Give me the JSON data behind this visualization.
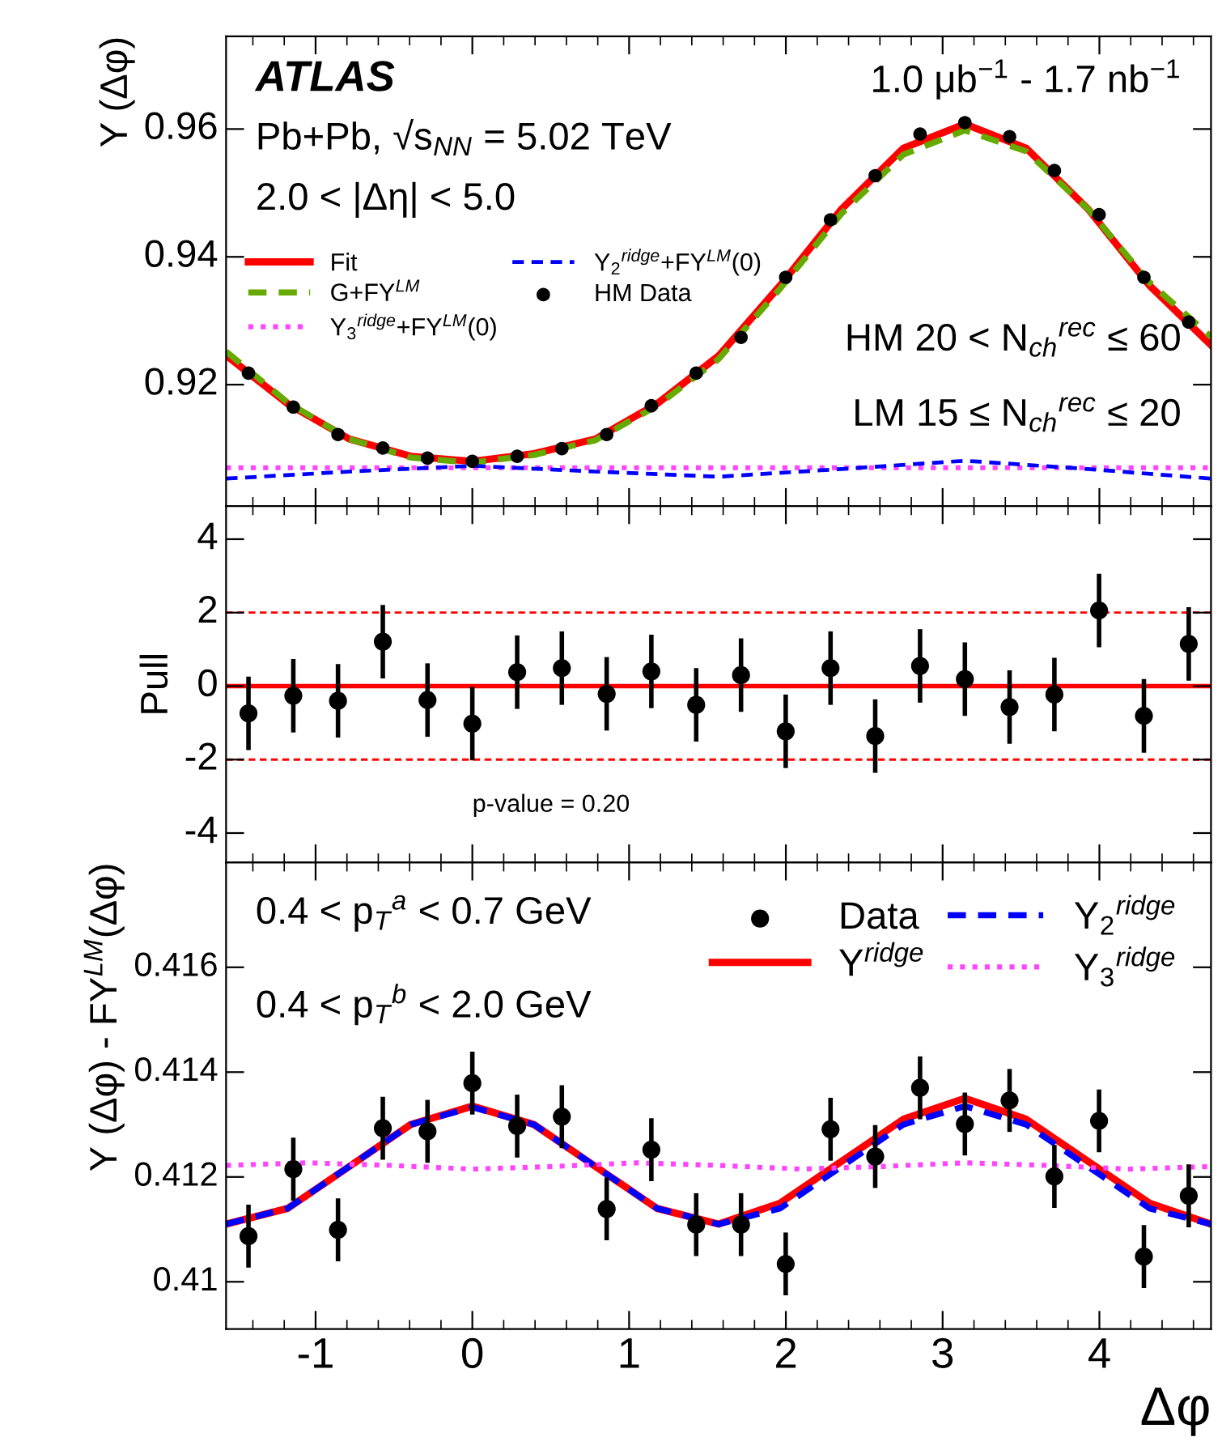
{
  "chart_data": [
    {
      "type": "line",
      "ylabel": "Y (Δφ)",
      "xlim": [
        -1.571,
        4.712
      ],
      "xticks": [
        -1,
        0,
        1,
        2,
        3,
        4
      ],
      "ylim": [
        0.901,
        0.9745
      ],
      "yticks": [
        0.92,
        0.94,
        0.96
      ],
      "tick_labels": "y",
      "legend": "left",
      "annotations": [
        "ATLAS",
        "1.0 μb$^{−1}$ - 1.7 nb$^{−1}$",
        "Pb+Pb, √s$_{NN}$ = 5.02 TeV",
        "2.0 < |Δη| < 5.0",
        "HM 20 < N$_{ch}$$^{rec}$ ≤ 60",
        "LM 15 ≤ N$_{ch}$$^{rec}$ ≤ 20"
      ],
      "series": [
        {
          "name": "Fit",
          "color": "#ff0000",
          "line_style": "solid",
          "x": [
            -1.571,
            -1.178,
            -0.785,
            -0.393,
            0,
            0.393,
            0.785,
            1.178,
            1.571,
            1.963,
            2.356,
            2.749,
            3.142,
            3.534,
            3.927,
            4.32,
            4.712
          ],
          "values": [
            0.9246,
            0.917,
            0.9115,
            0.9088,
            0.908,
            0.9092,
            0.9115,
            0.917,
            0.9245,
            0.9355,
            0.9475,
            0.957,
            0.9608,
            0.957,
            0.9475,
            0.9355,
            0.9262
          ]
        },
        {
          "name": "G+FY$^{LM}$",
          "color": "#66aa00",
          "line_style": "dashed",
          "x": [
            -1.571,
            -1.178,
            -0.785,
            -0.393,
            0,
            0.393,
            0.785,
            1.178,
            1.571,
            1.963,
            2.356,
            2.749,
            3.142,
            3.534,
            3.927,
            4.32,
            4.712
          ],
          "values": [
            0.9252,
            0.9172,
            0.9115,
            0.9086,
            0.9078,
            0.909,
            0.9113,
            0.9167,
            0.924,
            0.935,
            0.9468,
            0.956,
            0.9598,
            0.9565,
            0.9475,
            0.936,
            0.9275
          ]
        },
        {
          "name": "Y$_{3}$$^{ridge}$+FY$^{LM}$(0)",
          "color": "#ff44ff",
          "line_style": "dotted",
          "x": [
            -1.571,
            0,
            1.571,
            3.142,
            4.712
          ],
          "values": [
            0.907,
            0.907,
            0.907,
            0.907,
            0.907
          ]
        },
        {
          "name": "Y$_{2}$$^{ridge}$+FY$^{LM}$(0)",
          "color": "#0000ff",
          "line_style": "dashed",
          "x": [
            -1.571,
            -0.785,
            0,
            0.785,
            1.571,
            2.356,
            3.142,
            3.927,
            4.712
          ],
          "values": [
            0.9053,
            0.9064,
            0.9073,
            0.9064,
            0.9056,
            0.9068,
            0.9081,
            0.9068,
            0.9053
          ]
        },
        {
          "name": "HM Data",
          "type": "scatter",
          "color": "#000000",
          "marker": "circle",
          "x": [
            -1.428,
            -1.142,
            -0.857,
            -0.571,
            -0.286,
            0,
            0.286,
            0.571,
            0.857,
            1.142,
            1.428,
            1.714,
            1.999,
            2.285,
            2.57,
            2.856,
            3.142,
            3.427,
            3.713,
            3.998,
            4.284,
            4.57
          ],
          "values": [
            0.9218,
            0.9165,
            0.9122,
            0.9101,
            0.9085,
            0.908,
            0.9088,
            0.91,
            0.9122,
            0.9167,
            0.9218,
            0.9274,
            0.9368,
            0.9458,
            0.9527,
            0.9592,
            0.961,
            0.9588,
            0.9535,
            0.9466,
            0.9368,
            0.9298
          ]
        }
      ]
    },
    {
      "type": "scatter",
      "ylabel": "Pull",
      "xlim": [
        -1.571,
        4.712
      ],
      "xticks": [
        -1,
        0,
        1,
        2,
        3,
        4
      ],
      "ylim": [
        -4.8,
        4.9
      ],
      "yticks": [
        -4,
        -2,
        0,
        2,
        4
      ],
      "tick_labels": "y",
      "annotations": [
        "p-value = 0.20"
      ],
      "ref_lines": [
        {
          "axis": "y",
          "value": 0,
          "color": "#ff0000",
          "line_style": "solid"
        },
        {
          "axis": "y",
          "value": 2,
          "color": "#ff0000",
          "line_style": "dashed"
        },
        {
          "axis": "y",
          "value": -2,
          "color": "#ff0000",
          "line_style": "dashed"
        }
      ],
      "series": [
        {
          "color": "#000000",
          "marker": "circle",
          "x": [
            -1.428,
            -1.142,
            -0.857,
            -0.571,
            -0.286,
            0,
            0.286,
            0.571,
            0.857,
            1.142,
            1.428,
            1.714,
            1.999,
            2.285,
            2.57,
            2.856,
            3.142,
            3.427,
            3.713,
            3.998,
            4.284,
            4.57
          ],
          "values": [
            -0.74,
            -0.26,
            -0.4,
            1.21,
            -0.38,
            -1.02,
            0.38,
            0.49,
            -0.21,
            0.4,
            -0.51,
            0.3,
            -1.23,
            0.49,
            -1.36,
            0.55,
            0.19,
            -0.57,
            -0.23,
            2.06,
            -0.81,
            1.15
          ],
          "errors": [
            1,
            1,
            1,
            1,
            1,
            1,
            1,
            1,
            1,
            1,
            1,
            1,
            1,
            1,
            1,
            1,
            1,
            1,
            1,
            1,
            1,
            1
          ]
        }
      ]
    },
    {
      "type": "line",
      "ylabel": "Y (Δφ) - FY$^{LM}$(Δφ)",
      "xlabel": "Δφ",
      "xlim": [
        -1.571,
        4.712
      ],
      "xticks": [
        -1,
        0,
        1,
        2,
        3,
        4
      ],
      "ylim": [
        0.4091,
        0.418
      ],
      "yticks": [
        0.41,
        0.412,
        0.414,
        0.416
      ],
      "legend": "top right",
      "annotations": [
        "0.4 < p$_{T}$$^{a}$ < 0.7 GeV",
        "0.4 < p$_{T}$$^{b}$ < 2.0 GeV"
      ],
      "series": [
        {
          "name": "Data",
          "type": "scatter",
          "color": "#000000",
          "marker": "circle",
          "x": [
            -1.428,
            -1.142,
            -0.857,
            -0.571,
            -0.286,
            0,
            0.286,
            0.571,
            0.857,
            1.142,
            1.428,
            1.714,
            1.999,
            2.285,
            2.57,
            2.856,
            3.142,
            3.427,
            3.713,
            3.998,
            4.284,
            4.57
          ],
          "values": [
            0.41087,
            0.41215,
            0.41099,
            0.41293,
            0.41287,
            0.41379,
            0.41297,
            0.41315,
            0.41139,
            0.41252,
            0.41109,
            0.41109,
            0.41034,
            0.41291,
            0.41239,
            0.4137,
            0.41301,
            0.41346,
            0.41201,
            0.41307,
            0.41048,
            0.41164
          ],
          "errors": [
            0.0006,
            0.0006,
            0.0006,
            0.0006,
            0.0006,
            0.0006,
            0.0006,
            0.0006,
            0.0006,
            0.0006,
            0.0006,
            0.0006,
            0.0006,
            0.0006,
            0.0006,
            0.0006,
            0.0006,
            0.0006,
            0.0006,
            0.0006,
            0.0006,
            0.0006
          ]
        },
        {
          "name": "Y$^{ridge}$",
          "color": "#ff0000",
          "line_style": "solid",
          "x": [
            -1.571,
            -1.178,
            -0.785,
            -0.393,
            0,
            0.393,
            0.785,
            1.178,
            1.571,
            1.963,
            2.356,
            2.749,
            3.142,
            3.534,
            3.927,
            4.32,
            4.712
          ],
          "values": [
            0.4111,
            0.4114,
            0.4122,
            0.413,
            0.41335,
            0.413,
            0.4122,
            0.4114,
            0.4111,
            0.4115,
            0.4123,
            0.4131,
            0.4135,
            0.4131,
            0.4123,
            0.4115,
            0.4111
          ]
        },
        {
          "name": "Y$_{2}$$^{ridge}$",
          "color": "#0000ff",
          "line_style": "dashed",
          "x": [
            -1.571,
            -1.178,
            -0.785,
            -0.393,
            0,
            0.393,
            0.785,
            1.178,
            1.571,
            1.963,
            2.356,
            2.749,
            3.142,
            3.534,
            3.927,
            4.32,
            4.712
          ],
          "values": [
            0.4111,
            0.4114,
            0.4122,
            0.413,
            0.41333,
            0.413,
            0.4122,
            0.4114,
            0.4111,
            0.4114,
            0.4122,
            0.413,
            0.41335,
            0.413,
            0.4122,
            0.4114,
            0.4111
          ]
        },
        {
          "name": "Y$_{3}$$^{ridge}$",
          "color": "#ff44ff",
          "line_style": "dotted",
          "x": [
            -1.571,
            -1.047,
            -0.524,
            0,
            0.524,
            1.047,
            1.571,
            2.094,
            2.618,
            3.142,
            3.665,
            4.189,
            4.712
          ],
          "values": [
            0.41222,
            0.41227,
            0.41222,
            0.41215,
            0.4122,
            0.41227,
            0.41222,
            0.41215,
            0.4122,
            0.41227,
            0.41222,
            0.41215,
            0.4122
          ]
        }
      ]
    }
  ]
}
